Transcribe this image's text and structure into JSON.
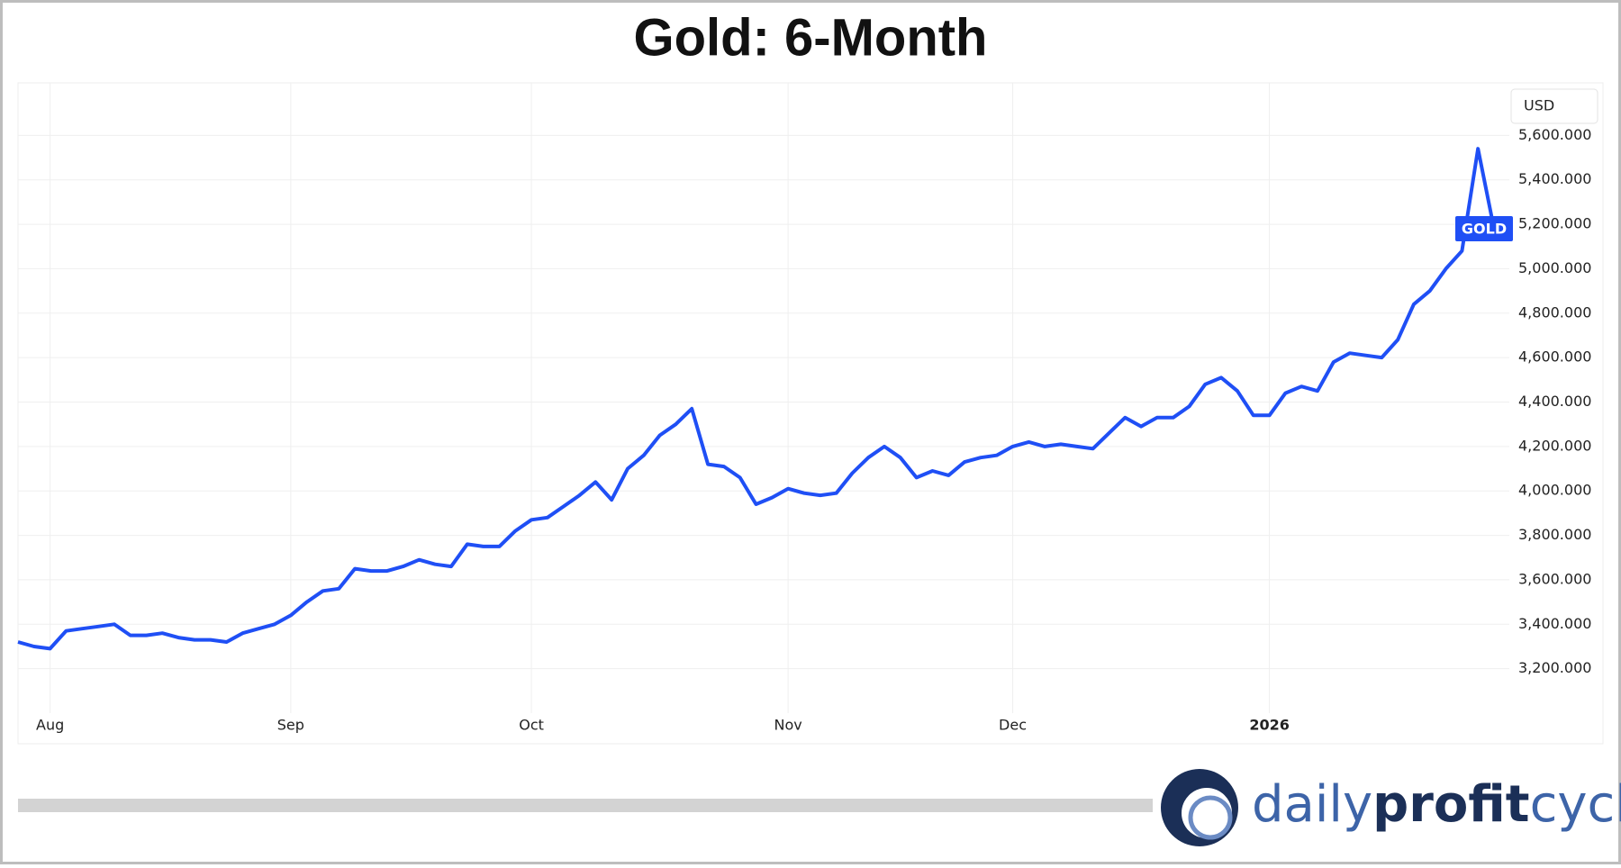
{
  "chart_data": {
    "type": "line",
    "title": "Gold: 6-Month",
    "ylabel": "USD",
    "categories": [
      null,
      null,
      "Aug",
      null,
      null,
      null,
      null,
      null,
      null,
      null,
      null,
      null,
      null,
      null,
      null,
      null,
      null,
      "Sep",
      null,
      null,
      null,
      null,
      null,
      null,
      null,
      null,
      null,
      null,
      null,
      null,
      null,
      null,
      "Oct",
      null,
      null,
      null,
      null,
      null,
      null,
      null,
      null,
      null,
      null,
      null,
      null,
      null,
      null,
      null,
      "Nov",
      null,
      null,
      null,
      null,
      null,
      null,
      null,
      null,
      null,
      null,
      null,
      null,
      null,
      "Dec",
      null,
      null,
      null,
      null,
      null,
      null,
      null,
      null,
      null,
      null,
      null,
      null,
      null,
      null,
      null,
      "2026",
      null,
      null,
      null,
      null,
      null,
      null,
      null,
      null,
      null,
      null,
      null,
      null,
      null,
      null
    ],
    "series": [
      {
        "name": "GOLD",
        "color": "#1f4ff5",
        "values": [
          3320,
          3300,
          3290,
          3370,
          3380,
          3390,
          3400,
          3350,
          3350,
          3360,
          3340,
          3330,
          3330,
          3320,
          3360,
          3380,
          3400,
          3440,
          3500,
          3550,
          3560,
          3650,
          3640,
          3640,
          3660,
          3690,
          3670,
          3660,
          3760,
          3750,
          3750,
          3820,
          3870,
          3880,
          3930,
          3980,
          4040,
          3960,
          4100,
          4160,
          4250,
          4300,
          4370,
          4120,
          4110,
          4060,
          3940,
          3970,
          4010,
          3990,
          3980,
          3990,
          4080,
          4150,
          4200,
          4150,
          4060,
          4090,
          4070,
          4130,
          4150,
          4160,
          4200,
          4220,
          4200,
          4210,
          4200,
          4190,
          4260,
          4330,
          4290,
          4330,
          4330,
          4380,
          4480,
          4510,
          4450,
          4340,
          4340,
          4440,
          4470,
          4450,
          4580,
          4620,
          4610,
          4600,
          4680,
          4840,
          4900,
          5000,
          5080,
          5540,
          5180
        ]
      }
    ],
    "ylim": [
      3000,
      5800
    ],
    "yticks": [
      {
        "value": 3200,
        "label": "3,200.000"
      },
      {
        "value": 3400,
        "label": "3,400.000"
      },
      {
        "value": 3600,
        "label": "3,600.000"
      },
      {
        "value": 3800,
        "label": "3,800.000"
      },
      {
        "value": 4000,
        "label": "4,000.000"
      },
      {
        "value": 4200,
        "label": "4,200.000"
      },
      {
        "value": 4400,
        "label": "4,400.000"
      },
      {
        "value": 4600,
        "label": "4,600.000"
      },
      {
        "value": 4800,
        "label": "4,800.000"
      },
      {
        "value": 5000,
        "label": "5,000.000"
      },
      {
        "value": 5200,
        "label": "5,200.000"
      },
      {
        "value": 5400,
        "label": "5,400.000"
      },
      {
        "value": 5600,
        "label": "5,600.000"
      }
    ],
    "grid": true
  },
  "brand": [
    "daily",
    "profit",
    "cycle"
  ]
}
